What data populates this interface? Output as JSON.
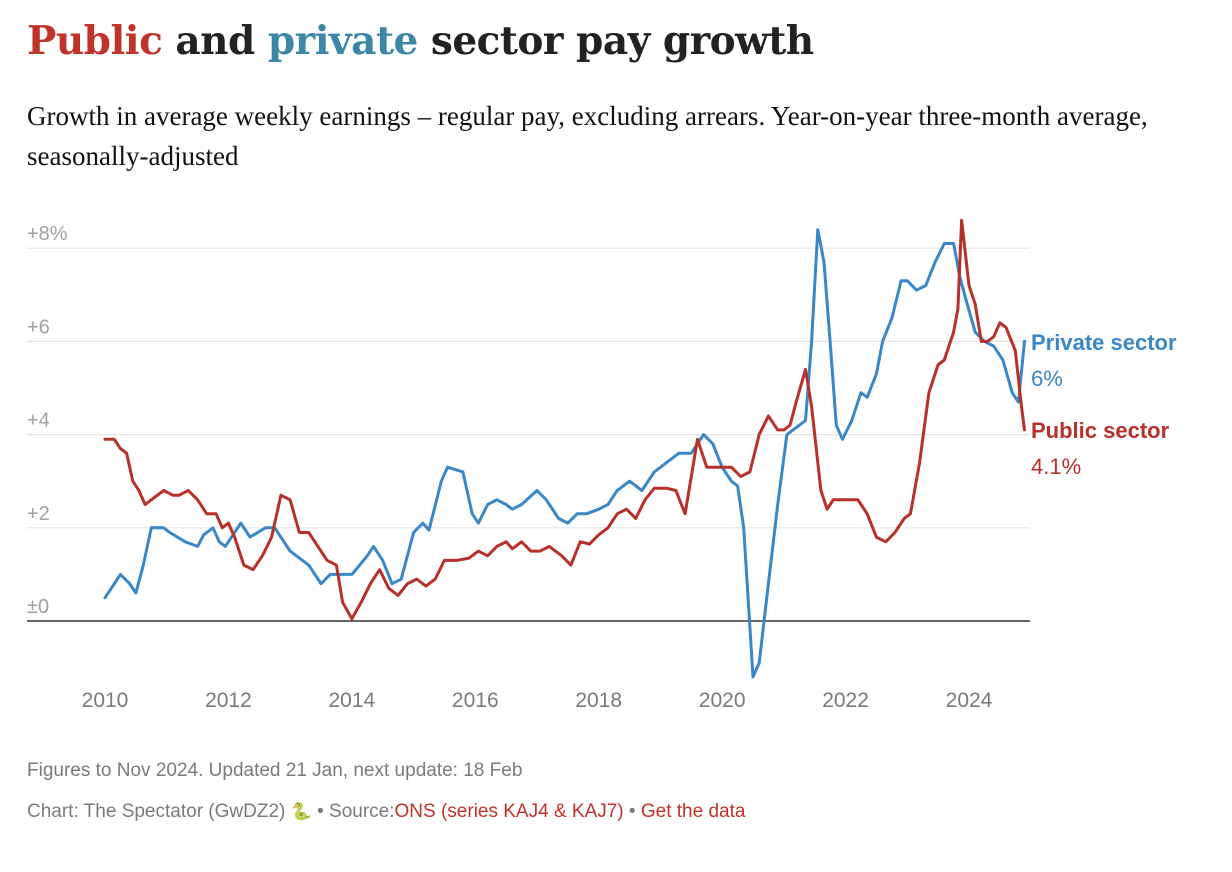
{
  "header": {
    "title_parts": {
      "public": "Public",
      "and": " and ",
      "private": "private",
      "rest": " sector pay growth"
    },
    "subtitle": "Growth in average weekly earnings – regular pay, excluding arrears. Year-on-year three-month average, seasonally-adjusted"
  },
  "colors": {
    "public": "#b8302a",
    "private": "#3a87c8",
    "title_private": "#3c87a8",
    "grid": "#e5e5e5",
    "zero_line": "#333333"
  },
  "footer": {
    "notes": "Figures to Nov 2024. Updated 21 Jan, next update: 18 Feb",
    "credit_prefix": "Chart: The Spectator (GwDZ2)",
    "credit_icon": "snake-icon",
    "credit_icon_glyph": "🐍",
    "separator": "•",
    "source_label": "Source:",
    "source_link": "ONS (series KAJ4 & KAJ7)",
    "get_data_link": "Get the data"
  },
  "chart_data": {
    "type": "line",
    "title": "Public and private sector pay growth",
    "subtitle": "Growth in average weekly earnings – regular pay, excluding arrears. Year-on-year three-month average, seasonally-adjusted",
    "xlabel": "",
    "ylabel": "",
    "xlim": [
      2010,
      2024.9
    ],
    "ylim": [
      -1.2,
      8.6
    ],
    "x_ticks": [
      2010,
      2012,
      2014,
      2016,
      2018,
      2020,
      2022,
      2024
    ],
    "x_tick_labels": [
      "2010",
      "2012",
      "2014",
      "2016",
      "2018",
      "2020",
      "2022",
      "2024"
    ],
    "y_ticks": [
      0,
      2,
      4,
      6,
      8
    ],
    "y_tick_labels": [
      "±0",
      "+2",
      "+4",
      "+6",
      "+8%"
    ],
    "grid": true,
    "legend": "direct-labels-right",
    "series": [
      {
        "name": "Private sector",
        "end_label": "6%",
        "color": "#3a87c8",
        "x": [
          2010.0,
          2010.1,
          2010.25,
          2010.4,
          2010.5,
          2010.62,
          2010.75,
          2010.95,
          2011.05,
          2011.3,
          2011.5,
          2011.6,
          2011.75,
          2011.85,
          2011.95,
          2012.05,
          2012.2,
          2012.35,
          2012.6,
          2012.75,
          2013.0,
          2013.3,
          2013.5,
          2013.65,
          2014.0,
          2014.25,
          2014.35,
          2014.5,
          2014.65,
          2014.8,
          2015.0,
          2015.15,
          2015.25,
          2015.45,
          2015.55,
          2015.8,
          2015.95,
          2016.05,
          2016.2,
          2016.35,
          2016.5,
          2016.6,
          2016.75,
          2017.0,
          2017.15,
          2017.35,
          2017.5,
          2017.65,
          2017.8,
          2018.0,
          2018.15,
          2018.3,
          2018.5,
          2018.7,
          2018.9,
          2019.1,
          2019.3,
          2019.5,
          2019.7,
          2019.85,
          2020.0,
          2020.15,
          2020.25,
          2020.35,
          2020.5,
          2020.6,
          2020.75,
          2020.9,
          2021.05,
          2021.2,
          2021.35,
          2021.45,
          2021.55,
          2021.65,
          2021.75,
          2021.85,
          2021.95,
          2022.1,
          2022.25,
          2022.35,
          2022.5,
          2022.6,
          2022.75,
          2022.9,
          2023.0,
          2023.15,
          2023.3,
          2023.45,
          2023.6,
          2023.75,
          2023.85,
          2023.95,
          2024.1,
          2024.25,
          2024.4,
          2024.55,
          2024.7,
          2024.8,
          2024.9
        ],
        "values": [
          0.5,
          0.7,
          1.0,
          0.8,
          0.6,
          1.2,
          2.0,
          2.0,
          1.9,
          1.7,
          1.6,
          1.85,
          2.0,
          1.7,
          1.6,
          1.8,
          2.1,
          1.8,
          2.0,
          2.0,
          1.5,
          1.2,
          0.8,
          1.0,
          1.0,
          1.4,
          1.6,
          1.3,
          0.8,
          0.9,
          1.9,
          2.1,
          1.95,
          3.0,
          3.3,
          3.2,
          2.3,
          2.1,
          2.5,
          2.6,
          2.5,
          2.4,
          2.5,
          2.8,
          2.6,
          2.2,
          2.1,
          2.3,
          2.3,
          2.4,
          2.5,
          2.8,
          3.0,
          2.8,
          3.2,
          3.4,
          3.6,
          3.6,
          4.0,
          3.8,
          3.3,
          3.0,
          2.9,
          2.0,
          -1.2,
          -0.9,
          0.8,
          2.5,
          4.0,
          4.15,
          4.3,
          6.0,
          8.4,
          7.7,
          6.0,
          4.2,
          3.9,
          4.3,
          4.9,
          4.8,
          5.3,
          6.0,
          6.5,
          7.3,
          7.3,
          7.1,
          7.2,
          7.7,
          8.1,
          8.1,
          7.4,
          6.9,
          6.2,
          6.0,
          5.9,
          5.6,
          4.9,
          4.7,
          6.0
        ]
      },
      {
        "name": "Public sector",
        "end_label": "4.1%",
        "color": "#b8302a",
        "x": [
          2010.0,
          2010.15,
          2010.25,
          2010.35,
          2010.45,
          2010.55,
          2010.65,
          2010.8,
          2010.95,
          2011.1,
          2011.2,
          2011.35,
          2011.5,
          2011.65,
          2011.8,
          2011.9,
          2012.0,
          2012.1,
          2012.25,
          2012.4,
          2012.55,
          2012.7,
          2012.85,
          2013.0,
          2013.15,
          2013.3,
          2013.45,
          2013.6,
          2013.75,
          2013.85,
          2014.0,
          2014.15,
          2014.3,
          2014.45,
          2014.6,
          2014.75,
          2014.9,
          2015.05,
          2015.2,
          2015.35,
          2015.5,
          2015.7,
          2015.9,
          2016.05,
          2016.2,
          2016.35,
          2016.5,
          2016.6,
          2016.75,
          2016.9,
          2017.05,
          2017.2,
          2017.4,
          2017.55,
          2017.7,
          2017.85,
          2018.0,
          2018.15,
          2018.3,
          2018.45,
          2018.6,
          2018.75,
          2018.9,
          2019.1,
          2019.25,
          2019.4,
          2019.6,
          2019.75,
          2019.95,
          2020.15,
          2020.3,
          2020.45,
          2020.6,
          2020.75,
          2020.9,
          2021.0,
          2021.1,
          2021.2,
          2021.35,
          2021.45,
          2021.6,
          2021.7,
          2021.8,
          2021.95,
          2022.1,
          2022.2,
          2022.35,
          2022.5,
          2022.65,
          2022.8,
          2022.95,
          2023.05,
          2023.2,
          2023.35,
          2023.5,
          2023.6,
          2023.75,
          2023.82,
          2023.88,
          2024.0,
          2024.1,
          2024.2,
          2024.3,
          2024.4,
          2024.5,
          2024.6,
          2024.75,
          2024.85,
          2024.9
        ],
        "values": [
          3.9,
          3.9,
          3.7,
          3.6,
          3.0,
          2.8,
          2.5,
          2.65,
          2.8,
          2.7,
          2.7,
          2.8,
          2.6,
          2.3,
          2.3,
          2.0,
          2.1,
          1.8,
          1.2,
          1.1,
          1.4,
          1.8,
          2.7,
          2.6,
          1.9,
          1.9,
          1.6,
          1.3,
          1.2,
          0.4,
          0.05,
          0.4,
          0.8,
          1.1,
          0.7,
          0.55,
          0.8,
          0.9,
          0.75,
          0.9,
          1.3,
          1.3,
          1.35,
          1.5,
          1.4,
          1.6,
          1.7,
          1.55,
          1.7,
          1.5,
          1.5,
          1.6,
          1.4,
          1.2,
          1.7,
          1.65,
          1.85,
          2.0,
          2.3,
          2.4,
          2.2,
          2.6,
          2.85,
          2.85,
          2.8,
          2.3,
          3.9,
          3.3,
          3.3,
          3.3,
          3.1,
          3.2,
          4.0,
          4.4,
          4.1,
          4.1,
          4.2,
          4.7,
          5.4,
          4.6,
          2.8,
          2.4,
          2.6,
          2.6,
          2.6,
          2.6,
          2.3,
          1.8,
          1.7,
          1.9,
          2.2,
          2.3,
          3.4,
          4.9,
          5.5,
          5.6,
          6.2,
          6.7,
          8.6,
          7.2,
          6.8,
          6.0,
          6.0,
          6.1,
          6.4,
          6.3,
          5.8,
          4.6,
          4.1
        ]
      }
    ]
  }
}
